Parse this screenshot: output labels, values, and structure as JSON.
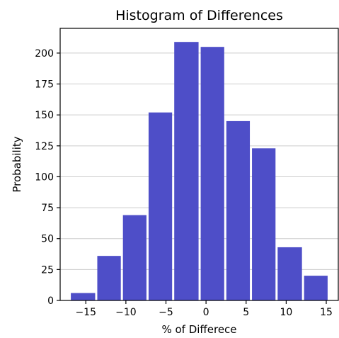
{
  "chart_data": {
    "type": "bar",
    "title": "Histogram of Differences",
    "xlabel": "% of Differece",
    "ylabel": "Probability",
    "bins": [
      {
        "x_start": -17.0,
        "x_end": -13.7,
        "value": 6
      },
      {
        "x_start": -13.7,
        "x_end": -10.5,
        "value": 36
      },
      {
        "x_start": -10.5,
        "x_end": -7.3,
        "value": 69
      },
      {
        "x_start": -7.3,
        "x_end": -4.1,
        "value": 152
      },
      {
        "x_start": -4.1,
        "x_end": -0.8,
        "value": 209
      },
      {
        "x_start": -0.8,
        "x_end": 2.4,
        "value": 205
      },
      {
        "x_start": 2.4,
        "x_end": 5.6,
        "value": 145
      },
      {
        "x_start": 5.6,
        "x_end": 8.8,
        "value": 123
      },
      {
        "x_start": 8.8,
        "x_end": 12.1,
        "value": 43
      },
      {
        "x_start": 12.1,
        "x_end": 15.3,
        "value": 20
      }
    ],
    "xlim": [
      -18.2,
      16.5
    ],
    "ylim": [
      0,
      220
    ],
    "xticks": [
      -15,
      -10,
      -5,
      0,
      5,
      10,
      15
    ],
    "xtick_labels": [
      "−15",
      "−10",
      "−5",
      "0",
      "5",
      "10",
      "15"
    ],
    "yticks": [
      0,
      25,
      50,
      75,
      100,
      125,
      150,
      175,
      200
    ],
    "ytick_labels": [
      "0",
      "25",
      "50",
      "75",
      "100",
      "125",
      "150",
      "175",
      "200"
    ],
    "grid": "horizontal",
    "bar_color": "#4e4ec8"
  }
}
